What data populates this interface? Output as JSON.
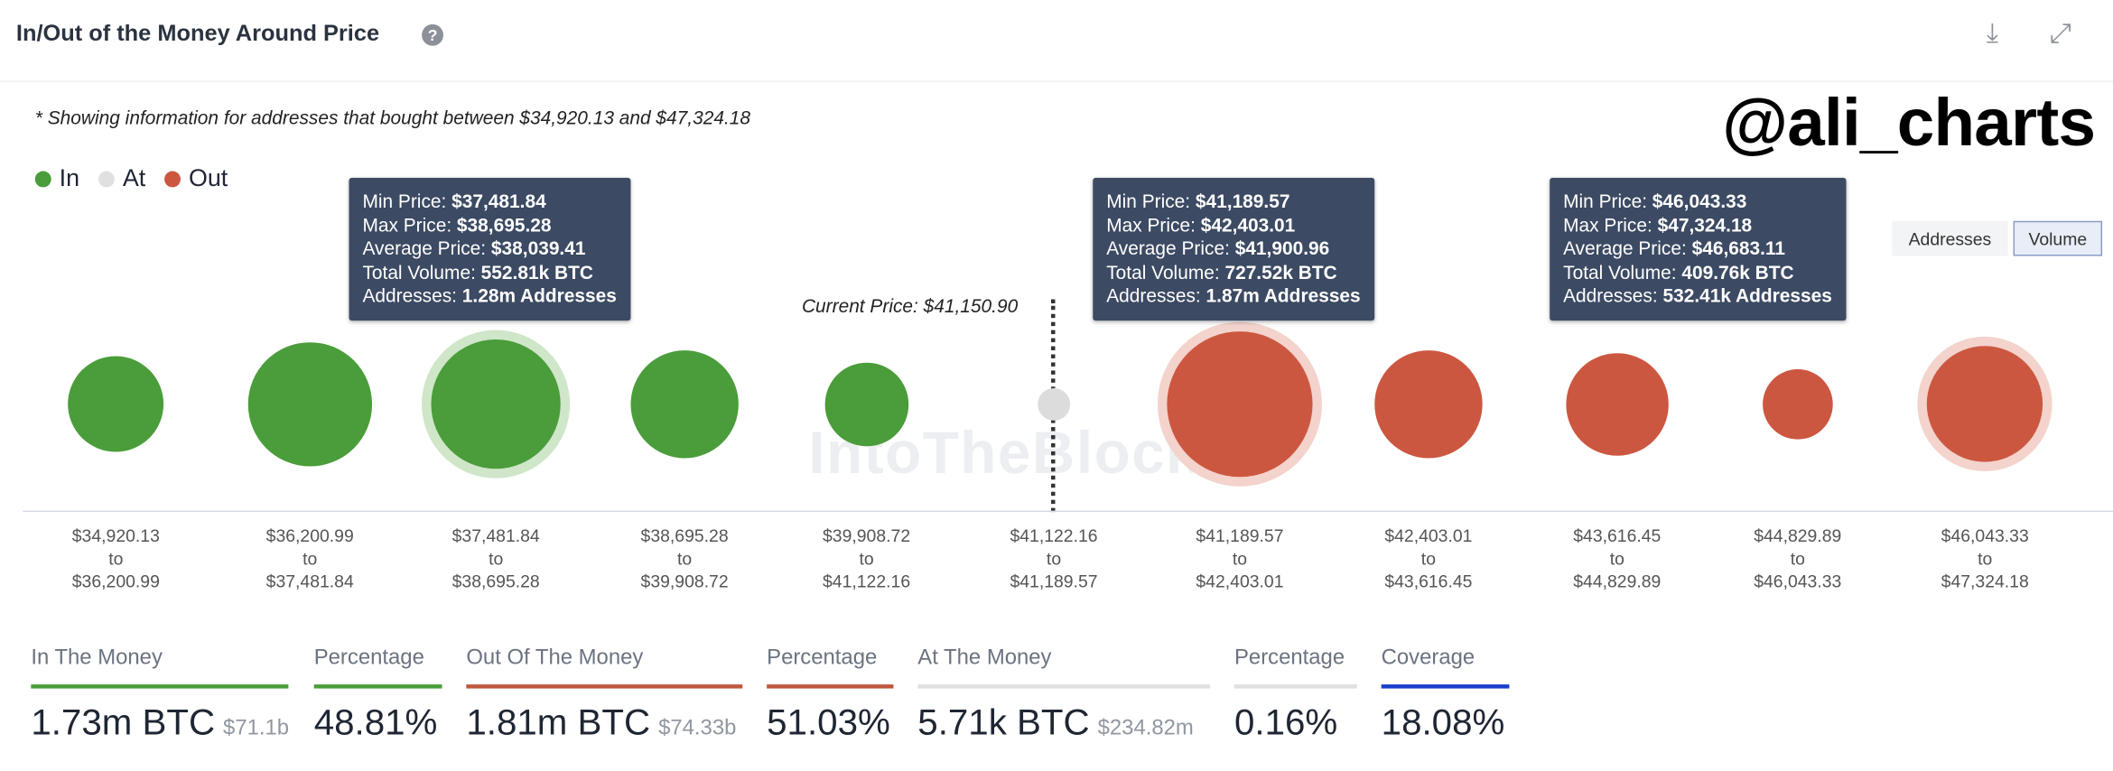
{
  "header": {
    "title": "In/Out of the Money Around Price",
    "help_icon": "question-circle-icon",
    "download_icon": "download-icon",
    "expand_icon": "expand-icon"
  },
  "note": "* Showing information for addresses that bought between $34,920.13 and $47,324.18",
  "watermark": "@ali_charts",
  "brand_watermark": "IntoTheBlock",
  "legend": [
    {
      "label": "In",
      "color": "#4a9d3a"
    },
    {
      "label": "At",
      "color": "#e0e0e0"
    },
    {
      "label": "Out",
      "color": "#cc5740"
    }
  ],
  "toggle": {
    "options": [
      "Addresses",
      "Volume"
    ],
    "selected": "Volume"
  },
  "current_price": "Current Price: $41,150.90",
  "bins": [
    {
      "from": "$34,920.13",
      "to": "$36,200.99",
      "status": "in",
      "size": 0.66
    },
    {
      "from": "$36,200.99",
      "to": "$37,481.84",
      "status": "in",
      "size": 0.85
    },
    {
      "from": "$37,481.84",
      "to": "$38,695.28",
      "status": "in",
      "size": 0.89,
      "highlighted": true
    },
    {
      "from": "$38,695.28",
      "to": "$39,908.72",
      "status": "in",
      "size": 0.74
    },
    {
      "from": "$39,908.72",
      "to": "$41,122.16",
      "status": "in",
      "size": 0.57
    },
    {
      "from": "$41,122.16",
      "to": "$41,189.57",
      "status": "at",
      "size": 0.22
    },
    {
      "from": "$41,189.57",
      "to": "$42,403.01",
      "status": "out",
      "size": 1.0,
      "highlighted": true
    },
    {
      "from": "$42,403.01",
      "to": "$43,616.45",
      "status": "out",
      "size": 0.74
    },
    {
      "from": "$43,616.45",
      "to": "$44,829.89",
      "status": "out",
      "size": 0.7
    },
    {
      "from": "$44,829.89",
      "to": "$46,043.33",
      "status": "out",
      "size": 0.48
    },
    {
      "from": "$46,043.33",
      "to": "$47,324.18",
      "status": "out",
      "size": 0.8,
      "highlighted": true
    }
  ],
  "bin_sep": "to",
  "tooltip_labels": {
    "min": "Min Price: ",
    "max": "Max Price: ",
    "avg": "Average Price: ",
    "vol": "Total Volume: ",
    "addr": "Addresses: "
  },
  "tooltips": [
    {
      "min": "$37,481.84",
      "max": "$38,695.28",
      "avg": "$38,039.41",
      "vol": "552.81k BTC",
      "addr": "1.28m Addresses"
    },
    {
      "min": "$41,189.57",
      "max": "$42,403.01",
      "avg": "$41,900.96",
      "vol": "727.52k BTC",
      "addr": "1.87m Addresses"
    },
    {
      "min": "$46,043.33",
      "max": "$47,324.18",
      "avg": "$46,683.11",
      "vol": "409.76k BTC",
      "addr": "532.41k Addresses"
    }
  ],
  "stats": [
    {
      "label": "In The Money",
      "value": "1.73m BTC",
      "sub": "$71.1b",
      "color": "#4a9d3a"
    },
    {
      "label": "Percentage",
      "value": "48.81%",
      "sub": "",
      "color": "#4a9d3a"
    },
    {
      "label": "Out Of The Money",
      "value": "1.81m BTC",
      "sub": "$74.33b",
      "color": "#c0573f"
    },
    {
      "label": "Percentage",
      "value": "51.03%",
      "sub": "",
      "color": "#c0573f"
    },
    {
      "label": "At The Money",
      "value": "5.71k BTC",
      "sub": "$234.82m",
      "color": "#e0e0e0"
    },
    {
      "label": "Percentage",
      "value": "0.16%",
      "sub": "",
      "color": "#e0e0e0"
    },
    {
      "label": "Coverage",
      "value": "18.08%",
      "sub": "",
      "color": "#1a3fcc"
    }
  ]
}
